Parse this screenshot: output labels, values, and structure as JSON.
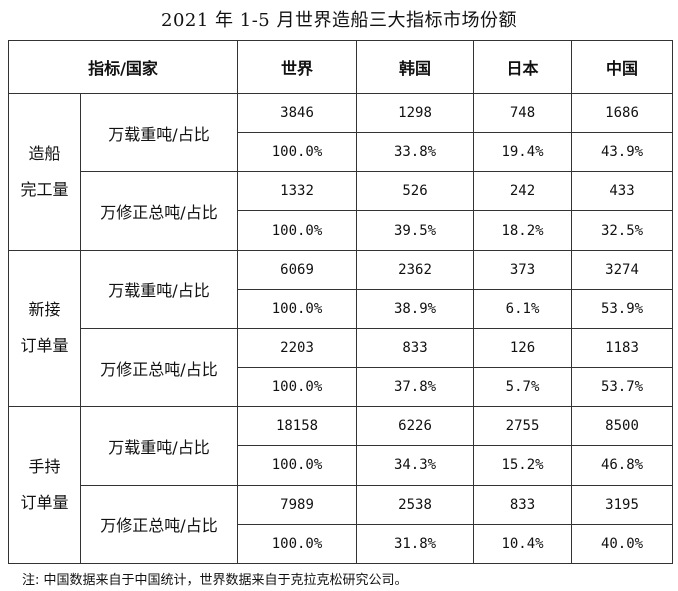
{
  "title": "2021 年 1-5 月世界造船三大指标市场份额",
  "table": {
    "header": {
      "corner": "指标/国家",
      "columns": [
        "世界",
        "韩国",
        "日本",
        "中国"
      ]
    },
    "groups": [
      {
        "category_line1": "造船",
        "category_line2": "完工量",
        "metrics": [
          {
            "label": "万载重吨/占比",
            "values": [
              "3846",
              "1298",
              "748",
              "1686"
            ],
            "shares": [
              "100.0%",
              "33.8%",
              "19.4%",
              "43.9%"
            ]
          },
          {
            "label": "万修正总吨/占比",
            "values": [
              "1332",
              "526",
              "242",
              "433"
            ],
            "shares": [
              "100.0%",
              "39.5%",
              "18.2%",
              "32.5%"
            ]
          }
        ]
      },
      {
        "category_line1": "新接",
        "category_line2": "订单量",
        "metrics": [
          {
            "label": "万载重吨/占比",
            "values": [
              "6069",
              "2362",
              "373",
              "3274"
            ],
            "shares": [
              "100.0%",
              "38.9%",
              "6.1%",
              "53.9%"
            ]
          },
          {
            "label": "万修正总吨/占比",
            "values": [
              "2203",
              "833",
              "126",
              "1183"
            ],
            "shares": [
              "100.0%",
              "37.8%",
              "5.7%",
              "53.7%"
            ]
          }
        ]
      },
      {
        "category_line1": "手持",
        "category_line2": "订单量",
        "metrics": [
          {
            "label": "万载重吨/占比",
            "values": [
              "18158",
              "6226",
              "2755",
              "8500"
            ],
            "shares": [
              "100.0%",
              "34.3%",
              "15.2%",
              "46.8%"
            ]
          },
          {
            "label": "万修正总吨/占比",
            "values": [
              "7989",
              "2538",
              "833",
              "3195"
            ],
            "shares": [
              "100.0%",
              "31.8%",
              "10.4%",
              "40.0%"
            ]
          }
        ]
      }
    ]
  },
  "note": "注: 中国数据来自于中国统计，世界数据来自于克拉克松研究公司。"
}
